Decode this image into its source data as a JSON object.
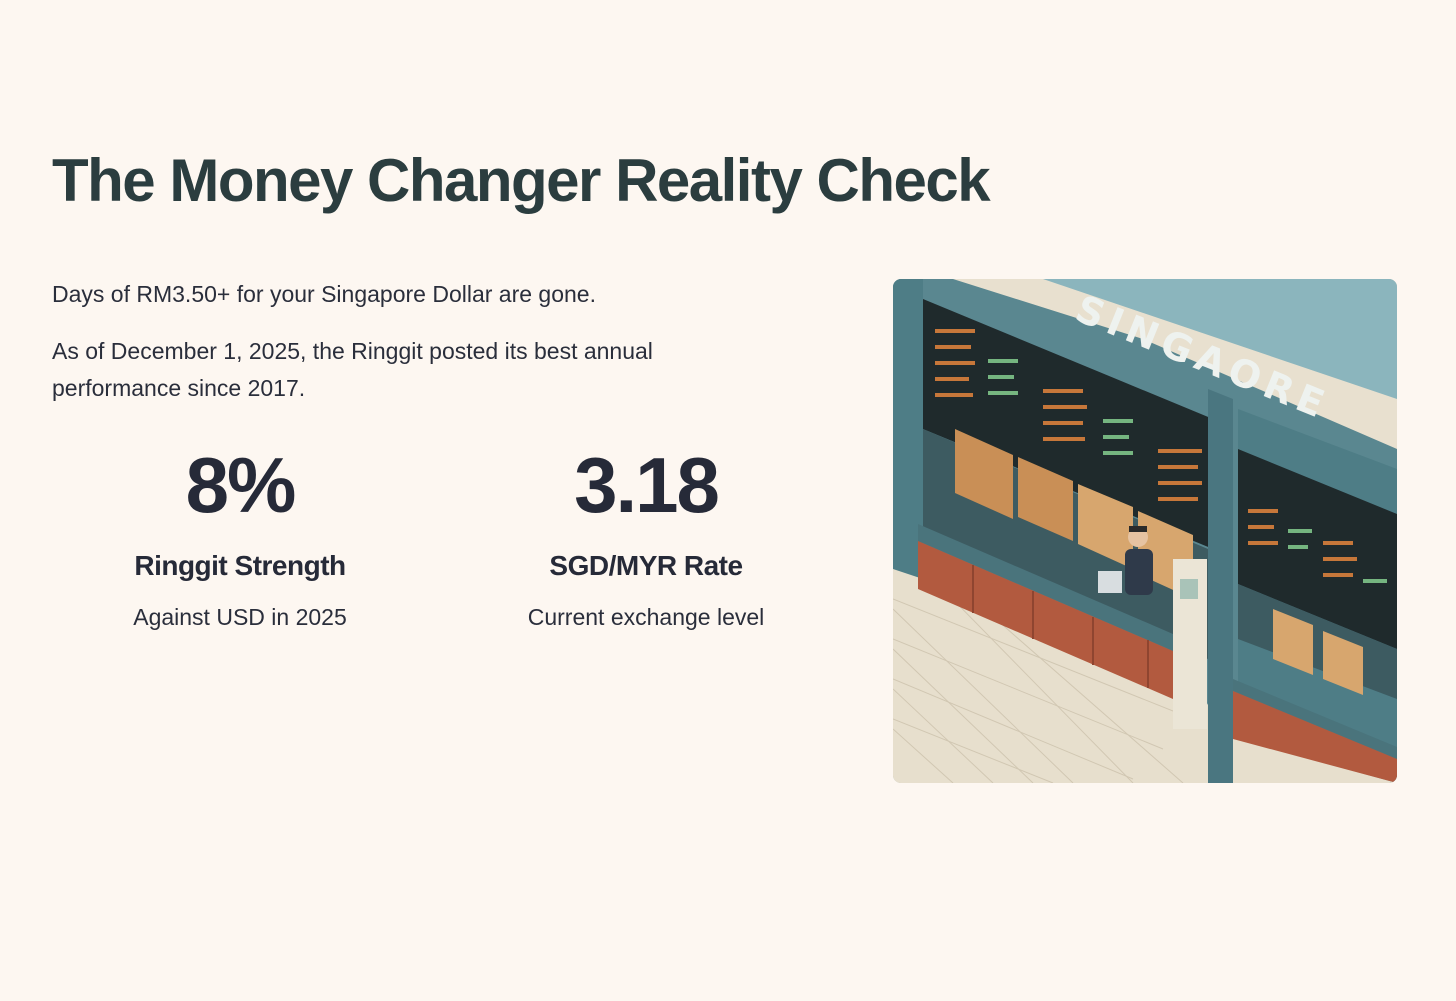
{
  "heading": "The Money Changer Reality Check",
  "intro": {
    "line1": "Days of RM3.50+ for your Singapore Dollar are gone.",
    "line2": "As of December 1, 2025, the Ringgit posted its best annual performance since 2017."
  },
  "stats": [
    {
      "value": "8%",
      "label": "Ringgit Strength",
      "description": "Against USD in 2025"
    },
    {
      "value": "3.18",
      "label": "SGD/MYR Rate",
      "description": "Current exchange level"
    }
  ],
  "illustration": {
    "sign_text": "SINGAORE",
    "colors": {
      "wall": "#4e7d86",
      "roof": "#8bb5bd",
      "board": "#1f2a2c",
      "counter": "#b25a3f",
      "floor": "#e7dfcd"
    }
  }
}
